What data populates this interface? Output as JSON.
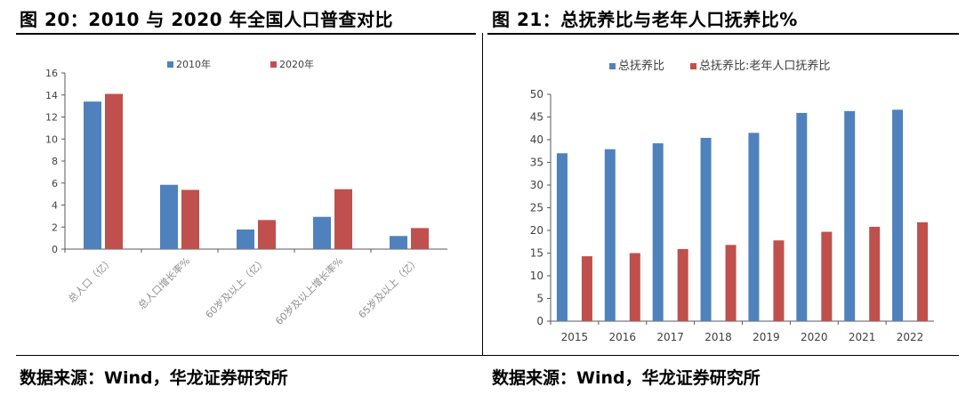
{
  "left_panel": {
    "title": "图 20：2010 与 2020 年全国人口普查对比",
    "source": "数据来源：Wind，华龙证券研究所"
  },
  "right_panel": {
    "title": "图 21：总抚养比与老年人口抚养比%",
    "source": "数据来源：Wind，华龙证券研究所"
  },
  "colors": {
    "blue": "#4f81bd",
    "red": "#c0504d",
    "axis": "#595959",
    "grid": "#d9d9d9"
  },
  "chart_data": [
    {
      "type": "bar",
      "categories": [
        "总人口（亿）",
        "总人口增长率%",
        "60岁及以上（亿）",
        "60岁及以上增长率%",
        "65岁及以上（亿）"
      ],
      "series": [
        {
          "name": "2010年",
          "values": [
            13.4,
            5.84,
            1.78,
            2.93,
            1.19
          ]
        },
        {
          "name": "2020年",
          "values": [
            14.1,
            5.38,
            2.64,
            5.44,
            1.91
          ]
        }
      ],
      "ylim": [
        0,
        16
      ],
      "yticks": [
        "0",
        "2",
        "4",
        "6",
        "8",
        "10",
        "12",
        "14",
        "16"
      ],
      "grid": false,
      "legend": "top",
      "x_tick_rotation": "diagonal"
    },
    {
      "type": "bar",
      "categories": [
        "2015",
        "2016",
        "2017",
        "2018",
        "2019",
        "2020",
        "2021",
        "2022"
      ],
      "series": [
        {
          "name": "总抚养比",
          "values": [
            37.0,
            37.9,
            39.2,
            40.4,
            41.5,
            45.9,
            46.3,
            46.6
          ]
        },
        {
          "name": "总抚养比:老年人口抚养比",
          "values": [
            14.3,
            15.0,
            15.9,
            16.8,
            17.8,
            19.7,
            20.8,
            21.8
          ]
        }
      ],
      "ylim": [
        0,
        50
      ],
      "yticks": [
        "0",
        "5",
        "10",
        "15",
        "20",
        "25",
        "30",
        "35",
        "40",
        "45",
        "50"
      ],
      "grid": false,
      "legend": "top"
    }
  ]
}
